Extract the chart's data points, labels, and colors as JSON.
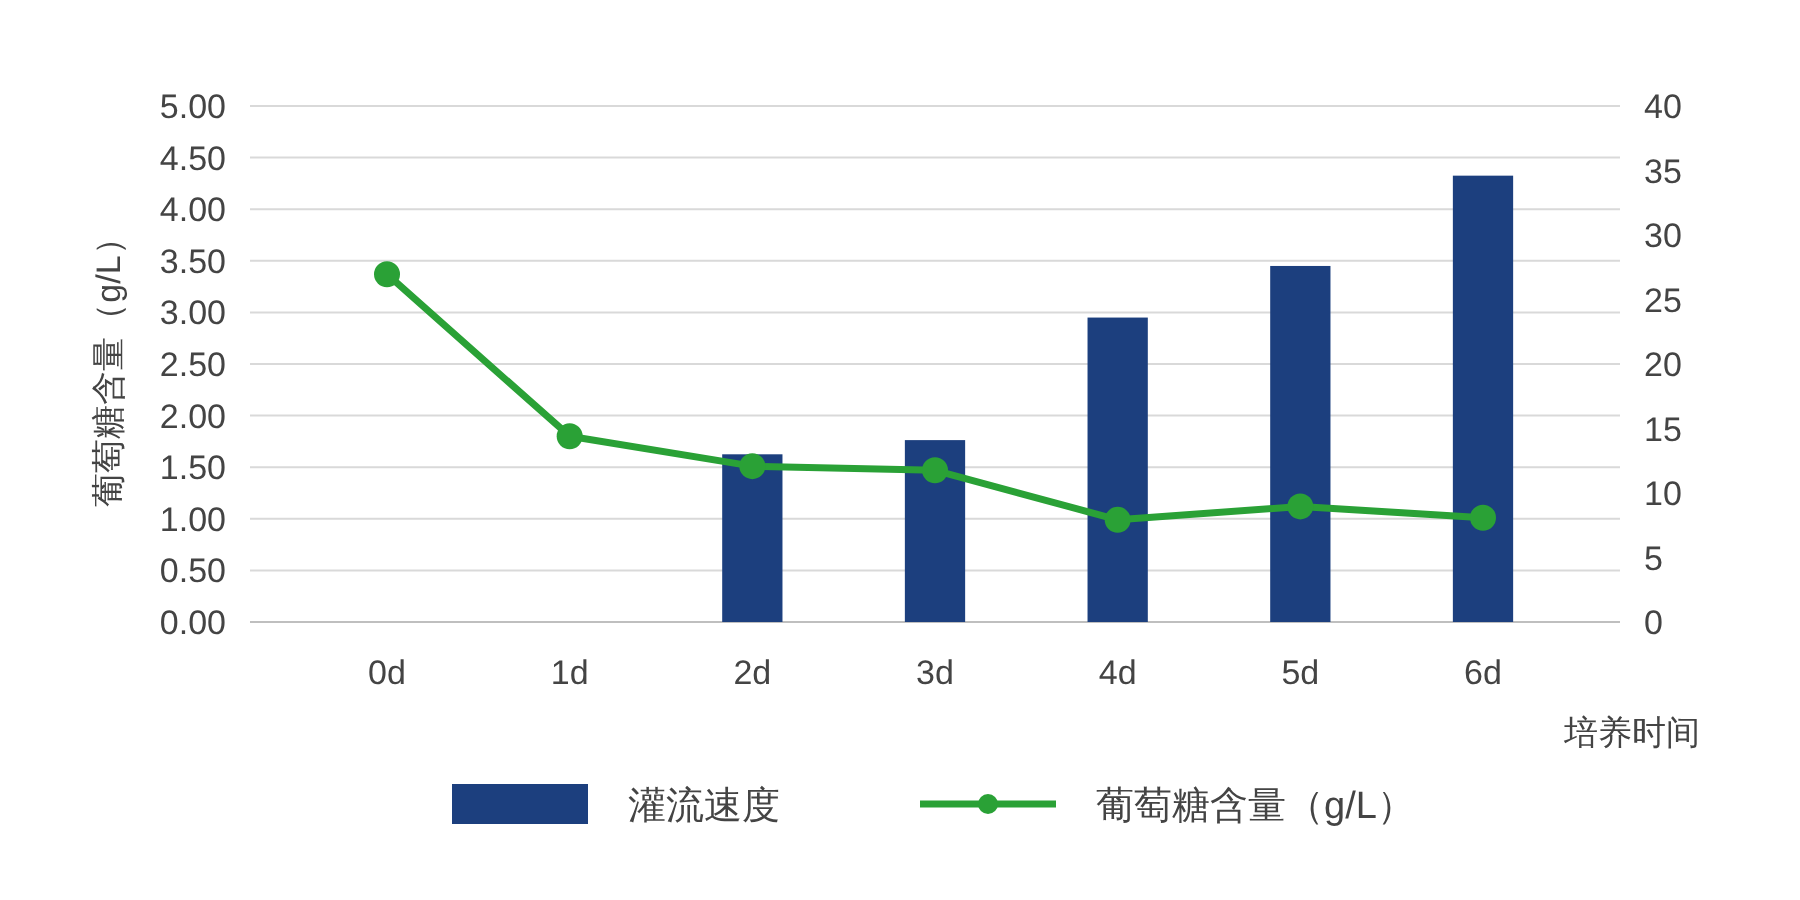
{
  "chart_data": {
    "type": "bar",
    "categories": [
      "0d",
      "1d",
      "2d",
      "3d",
      "4d",
      "5d",
      "6d"
    ],
    "series": [
      {
        "name": "灌流速度",
        "axis": "y2",
        "color": "#1c3f7e",
        "values": [
          null,
          null,
          13.0,
          14.1,
          23.6,
          27.6,
          34.6
        ]
      },
      {
        "name": "葡萄糖含量（g/L）",
        "type": "line",
        "color": "#2aa136",
        "values": [
          3.37,
          1.8,
          1.51,
          1.47,
          0.99,
          1.12,
          1.01
        ]
      }
    ],
    "xlabel": "培养时间",
    "ylabel": "葡萄糖含量（g/L）",
    "ylim": [
      0,
      5
    ],
    "yticks": [
      {
        "value": 0,
        "label": "0.00"
      },
      {
        "value": 0.5,
        "label": "0.50"
      },
      {
        "value": 1,
        "label": "1.00"
      },
      {
        "value": 1.5,
        "label": "1.50"
      },
      {
        "value": 2,
        "label": "2.00"
      },
      {
        "value": 2.5,
        "label": "2.50"
      },
      {
        "value": 3,
        "label": "3.00"
      },
      {
        "value": 3.5,
        "label": "3.50"
      },
      {
        "value": 4,
        "label": "4.00"
      },
      {
        "value": 4.5,
        "label": "4.50"
      },
      {
        "value": 5,
        "label": "5.00"
      }
    ],
    "y2lim": [
      0,
      40
    ],
    "y2ticks": [
      0,
      5,
      10,
      15,
      20,
      25,
      30,
      35,
      40
    ],
    "grid": "y",
    "legend": "bottom",
    "marker": "circle",
    "line_style": "solid"
  }
}
